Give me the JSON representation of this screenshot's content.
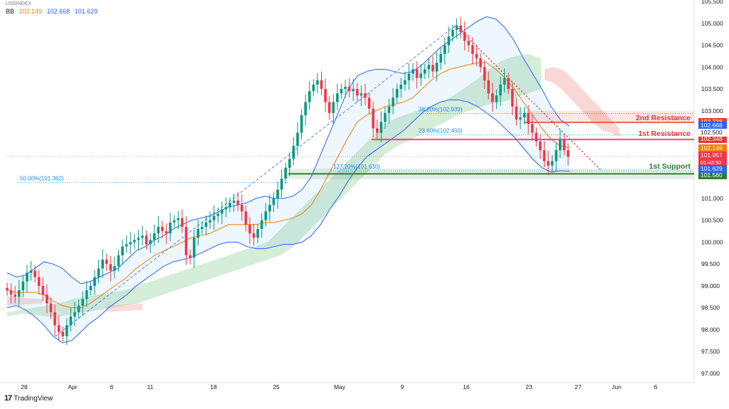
{
  "header": {
    "symbol_line": "USDINDEX",
    "bb_label": "BB",
    "bb_basis": "102.149",
    "bb_upper": "102.668",
    "bb_lower": "101.629",
    "bb_basis_color": "#f57c00",
    "bb_band_color": "#2962ff"
  },
  "footer": {
    "logo": "17",
    "brand": "TradingView"
  },
  "colors": {
    "up": "#089981",
    "down": "#f23645",
    "band": "#2962ff",
    "basis": "#f57c00",
    "resistance": "#e53935",
    "support": "#2e7d32",
    "fib": "#1e88e5",
    "cloud_green": "#a5d6a7",
    "cloud_red": "#ef9a9a"
  },
  "chart_data": {
    "type": "candlestick",
    "y_range": [
      97.0,
      105.5
    ],
    "y_ticks": [
      "97.000",
      "97.500",
      "98.000",
      "98.500",
      "99.000",
      "99.500",
      "100.000",
      "100.500",
      "101.000",
      "101.500",
      "102.000",
      "102.500",
      "103.000",
      "103.500",
      "104.000",
      "104.500",
      "105.000",
      "105.500"
    ],
    "x_ticks": [
      "28",
      "Apr",
      "6",
      "11",
      "18",
      "25",
      "May",
      "9",
      "16",
      "23",
      "27",
      "Jun",
      "6"
    ],
    "close_path": [
      98.9,
      98.8,
      98.75,
      98.9,
      99.1,
      99.3,
      99.35,
      99.2,
      99.0,
      98.8,
      98.6,
      98.4,
      98.1,
      97.95,
      97.85,
      98.1,
      98.3,
      98.4,
      98.55,
      98.7,
      98.9,
      99.0,
      99.2,
      99.4,
      99.6,
      99.5,
      99.35,
      99.45,
      99.7,
      99.9,
      99.95,
      100.0,
      100.05,
      100.1,
      100.15,
      99.95,
      100.05,
      100.2,
      100.35,
      100.25,
      100.2,
      100.45,
      100.5,
      100.55,
      100.35,
      99.7,
      99.65,
      100.1,
      100.3,
      100.35,
      100.45,
      100.5,
      100.6,
      100.65,
      100.75,
      100.8,
      100.9,
      100.95,
      100.85,
      100.7,
      100.4,
      100.2,
      100.1,
      100.3,
      100.5,
      100.7,
      100.85,
      101.0,
      101.2,
      101.45,
      101.7,
      101.9,
      102.2,
      102.5,
      102.9,
      103.2,
      103.45,
      103.6,
      103.7,
      103.5,
      103.2,
      102.95,
      103.2,
      103.4,
      103.5,
      103.55,
      103.45,
      103.5,
      103.35,
      103.4,
      103.3,
      103.05,
      102.6,
      102.5,
      102.75,
      102.95,
      103.1,
      103.3,
      103.5,
      103.6,
      103.7,
      103.85,
      103.95,
      103.75,
      103.85,
      103.95,
      104.05,
      103.9,
      104.1,
      104.3,
      104.5,
      104.7,
      104.85,
      104.95,
      104.8,
      104.6,
      104.5,
      104.3,
      104.2,
      104.0,
      103.7,
      103.4,
      103.2,
      103.35,
      103.6,
      103.75,
      103.5,
      103.1,
      102.8,
      102.85,
      102.95,
      102.7,
      102.5,
      102.3,
      102.1,
      101.85,
      101.75,
      101.85,
      102.1,
      102.35,
      102.1,
      101.95
    ],
    "bb_upper": [
      99.3,
      99.2,
      99.25,
      99.4,
      99.55,
      99.5,
      99.4,
      99.2,
      99.05,
      99.1,
      99.2,
      99.3,
      99.4,
      99.6,
      99.8,
      99.9,
      100.05,
      100.15,
      100.3,
      100.4,
      100.5,
      100.55,
      100.6,
      100.7,
      100.8,
      100.85,
      100.9,
      101.0,
      101.05,
      101.0,
      101.0,
      101.05,
      101.2,
      101.5,
      102.0,
      102.5,
      103.0,
      103.5,
      103.8,
      103.9,
      103.95,
      103.95,
      103.9,
      103.85,
      103.9,
      104.05,
      104.25,
      104.45,
      104.6,
      104.75,
      104.9,
      105.05,
      105.15,
      105.1,
      104.9,
      104.6,
      104.2,
      103.85,
      103.5,
      103.1,
      102.8,
      102.65
    ],
    "bb_lower": [
      98.5,
      98.55,
      98.45,
      98.3,
      98.1,
      97.85,
      97.7,
      97.75,
      97.95,
      98.15,
      98.3,
      98.5,
      98.65,
      98.8,
      99.0,
      99.15,
      99.3,
      99.45,
      99.55,
      99.6,
      99.65,
      99.75,
      99.85,
      99.95,
      100.0,
      100.0,
      99.9,
      99.85,
      99.85,
      99.9,
      99.95,
      99.95,
      100.0,
      100.15,
      100.4,
      100.75,
      101.05,
      101.4,
      101.7,
      101.95,
      102.1,
      102.25,
      102.4,
      102.55,
      102.75,
      102.95,
      103.1,
      103.2,
      103.25,
      103.25,
      103.2,
      103.1,
      102.95,
      102.8,
      102.6,
      102.4,
      102.15,
      101.9,
      101.7,
      101.6,
      101.63,
      101.62
    ],
    "bb_basis": [
      98.9,
      98.85,
      98.85,
      98.85,
      98.8,
      98.65,
      98.55,
      98.5,
      98.5,
      98.6,
      98.75,
      98.9,
      99.05,
      99.2,
      99.4,
      99.55,
      99.7,
      99.8,
      99.9,
      100.0,
      100.1,
      100.15,
      100.2,
      100.3,
      100.4,
      100.4,
      100.4,
      100.4,
      100.45,
      100.45,
      100.5,
      100.55,
      100.65,
      100.85,
      101.2,
      101.6,
      102.0,
      102.4,
      102.75,
      102.9,
      103.0,
      103.1,
      103.15,
      103.2,
      103.3,
      103.5,
      103.7,
      103.85,
      103.95,
      104.0,
      104.05,
      104.1,
      104.1,
      103.95,
      103.75,
      103.5,
      103.2,
      102.9,
      102.6,
      102.35,
      102.2,
      102.15
    ],
    "ichimoku_green_upper": [
      98.4,
      98.45,
      98.5,
      98.55,
      98.6,
      98.7,
      98.75,
      98.8,
      98.85,
      98.9,
      99.0,
      99.1,
      99.2,
      99.3,
      99.4,
      99.5,
      99.6,
      99.7,
      99.8,
      99.9,
      100.0,
      100.3,
      100.6,
      100.9,
      101.2,
      101.5,
      101.8,
      102.1,
      102.4,
      102.7,
      102.85,
      102.95,
      103.05,
      103.15,
      103.3,
      103.5,
      103.7,
      103.95,
      104.15,
      104.25,
      104.3,
      104.2
    ],
    "ichimoku_green_lower": [
      98.3,
      98.35,
      98.35,
      98.3,
      98.3,
      98.35,
      98.4,
      98.45,
      98.5,
      98.55,
      98.6,
      98.7,
      98.8,
      98.9,
      99.0,
      99.1,
      99.2,
      99.3,
      99.4,
      99.5,
      99.6,
      99.7,
      99.9,
      100.2,
      100.5,
      100.8,
      101.1,
      101.4,
      101.7,
      102.0,
      102.2,
      102.35,
      102.5,
      102.65,
      102.8,
      102.95,
      103.05,
      103.15,
      103.2,
      103.3,
      103.4,
      103.5
    ],
    "ichimoku_red_upper": [
      103.95,
      104.0,
      103.95,
      103.8,
      103.6,
      103.4,
      103.2,
      103.0,
      102.8,
      102.6
    ],
    "ichimoku_red_lower": [
      103.7,
      103.65,
      103.5,
      103.3,
      103.1,
      102.9,
      102.7,
      102.55,
      102.5,
      102.4
    ],
    "levels": [
      {
        "name": "2nd Resistance",
        "value": 102.738,
        "tag": "102.738",
        "color": "#e53935"
      },
      {
        "name": "1st Resistance",
        "value": 102.348,
        "tag": "102.348",
        "color": "#e53935"
      },
      {
        "name": "1st Support",
        "value": 101.56,
        "tag": "101.560",
        "color": "#2e7d32"
      }
    ],
    "fib_labels": [
      {
        "text": "38.20%(102.939)",
        "value": 102.939
      },
      {
        "text": "23.60%(102.450)",
        "value": 102.45
      },
      {
        "text": "127.20%(101.630)",
        "value": 101.63
      },
      {
        "text": "50.00%(101.362)",
        "value": 101.362
      }
    ],
    "price_tags": [
      {
        "text": "102.668",
        "value": 102.668,
        "color": "#2962ff"
      },
      {
        "text": "102.149",
        "value": 102.149,
        "color": "#f57c00"
      },
      {
        "text": "101.957",
        "value": 101.957,
        "color": "#f23645",
        "sub": "01:42:50"
      },
      {
        "text": "101.629",
        "value": 101.629,
        "color": "#2962ff"
      },
      {
        "text": "102.500",
        "value": 102.5,
        "color": "#ffffff"
      }
    ],
    "downtrend_line": {
      "from": 104.95,
      "to": 101.63
    },
    "uptrend_line": {
      "from": 97.85,
      "to": 104.95
    }
  }
}
